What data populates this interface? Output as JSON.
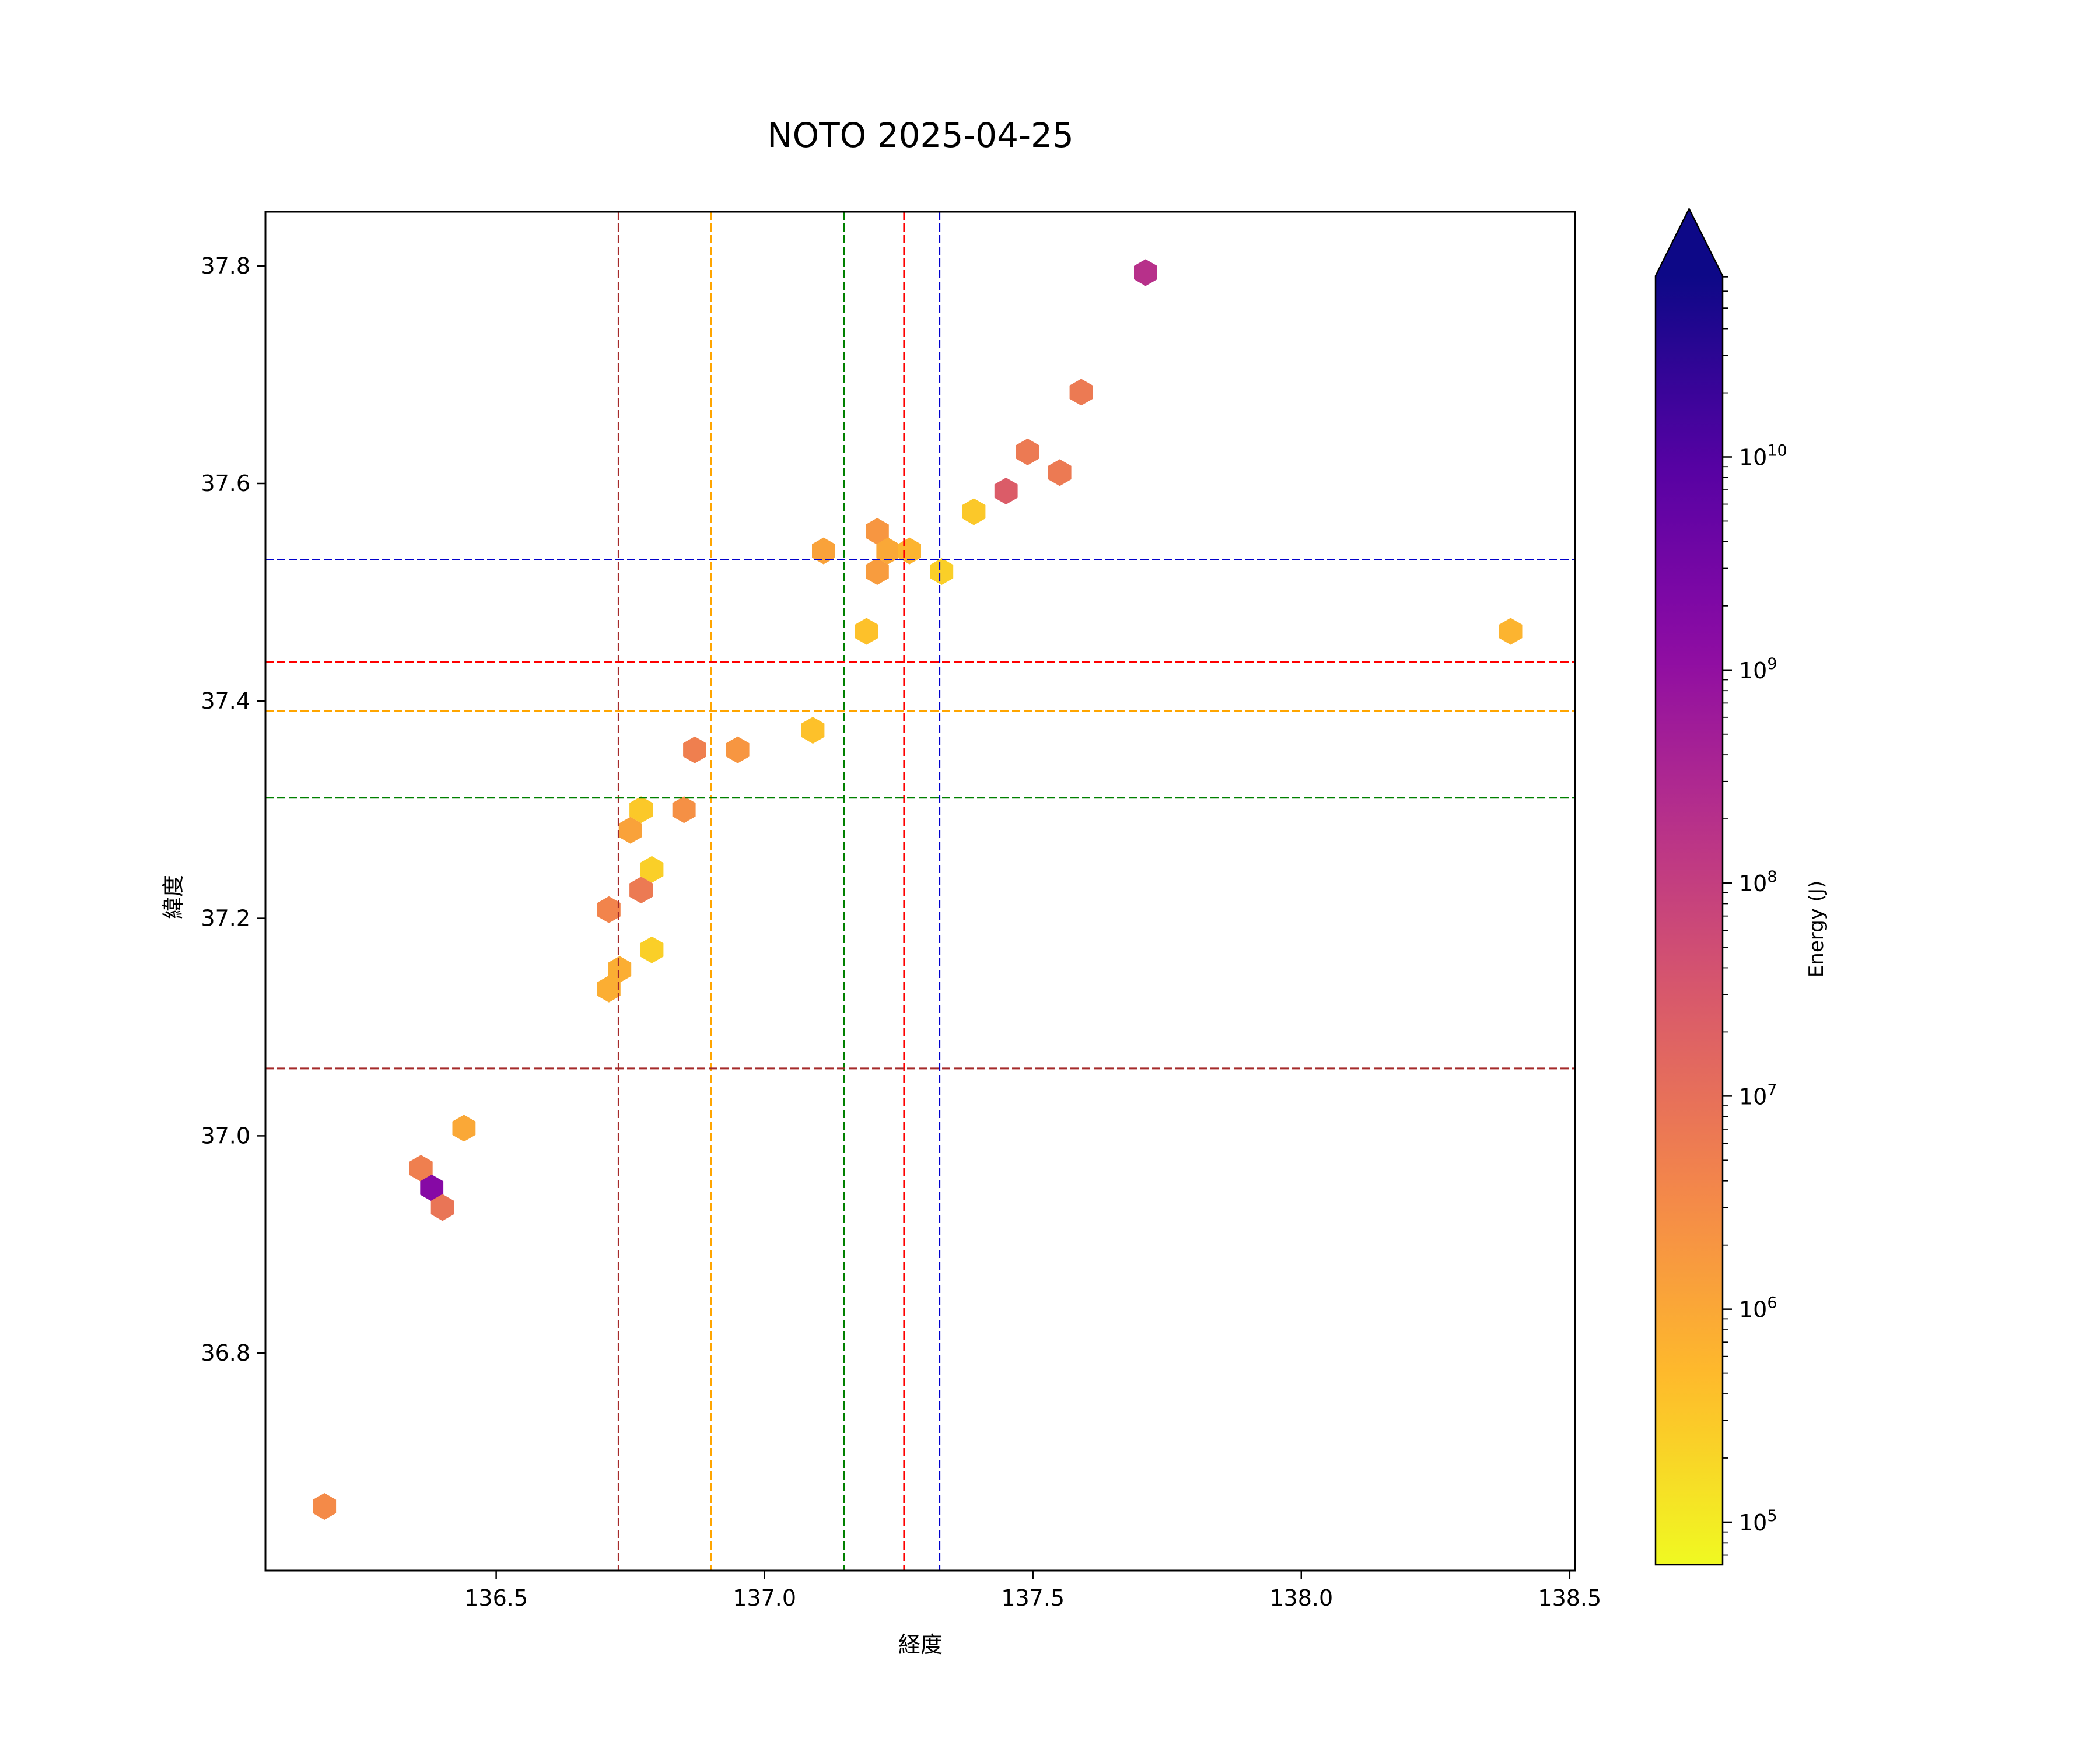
{
  "chart_data": {
    "type": "hexbin",
    "title": "NOTO 2025-04-25",
    "xlabel": "経度",
    "ylabel": "緯度",
    "xlim": [
      136.07,
      138.51
    ],
    "ylim": [
      36.6,
      37.85
    ],
    "xticks": [
      136.5,
      137.0,
      137.5,
      138.0,
      138.5
    ],
    "xtick_labels": [
      "136.5",
      "137.0",
      "137.5",
      "138.0",
      "138.5"
    ],
    "yticks": [
      36.8,
      37.0,
      37.2,
      37.4,
      37.6,
      37.8
    ],
    "ytick_labels": [
      "36.8",
      "37.0",
      "37.2",
      "37.4",
      "37.6",
      "37.8"
    ],
    "grid": false,
    "colorbar": {
      "label": "Energy (J)",
      "scale": "log",
      "colormap": "plasma_r",
      "range_log10": [
        4.8,
        10.85
      ],
      "extend": "max",
      "ticks": [
        {
          "base": "10",
          "exp": "5",
          "log10": 5
        },
        {
          "base": "10",
          "exp": "6",
          "log10": 6
        },
        {
          "base": "10",
          "exp": "7",
          "log10": 7
        },
        {
          "base": "10",
          "exp": "8",
          "log10": 8
        },
        {
          "base": "10",
          "exp": "9",
          "log10": 9
        },
        {
          "base": "10",
          "exp": "10",
          "log10": 10
        }
      ]
    },
    "vlines": [
      {
        "x": 136.728,
        "color": "#a52a2a"
      },
      {
        "x": 136.9,
        "color": "#ffa500"
      },
      {
        "x": 137.148,
        "color": "#008000"
      },
      {
        "x": 137.26,
        "color": "#ff0000"
      },
      {
        "x": 137.326,
        "color": "#0000cc"
      }
    ],
    "hlines": [
      {
        "y": 37.53,
        "color": "#0000cc"
      },
      {
        "y": 37.436,
        "color": "#ff0000"
      },
      {
        "y": 37.391,
        "color": "#ffa500"
      },
      {
        "y": 37.311,
        "color": "#008000"
      },
      {
        "y": 37.062,
        "color": "#a52a2a"
      }
    ],
    "points": [
      {
        "x": 137.71,
        "y": 37.794,
        "energy_log10": 8.3
      },
      {
        "x": 137.59,
        "y": 37.684,
        "energy_log10": 6.8
      },
      {
        "x": 137.49,
        "y": 37.629,
        "energy_log10": 6.8
      },
      {
        "x": 137.55,
        "y": 37.61,
        "energy_log10": 6.8
      },
      {
        "x": 137.45,
        "y": 37.593,
        "energy_log10": 7.4
      },
      {
        "x": 137.39,
        "y": 37.574,
        "energy_log10": 5.5
      },
      {
        "x": 137.21,
        "y": 37.556,
        "energy_log10": 6.3
      },
      {
        "x": 137.23,
        "y": 37.538,
        "energy_log10": 6.0
      },
      {
        "x": 137.27,
        "y": 37.538,
        "energy_log10": 5.8
      },
      {
        "x": 137.11,
        "y": 37.538,
        "energy_log10": 6.1
      },
      {
        "x": 137.21,
        "y": 37.519,
        "energy_log10": 6.2
      },
      {
        "x": 137.33,
        "y": 37.519,
        "energy_log10": 5.4
      },
      {
        "x": 137.19,
        "y": 37.464,
        "energy_log10": 5.6
      },
      {
        "x": 138.39,
        "y": 37.464,
        "energy_log10": 5.8
      },
      {
        "x": 137.09,
        "y": 37.373,
        "energy_log10": 5.6
      },
      {
        "x": 136.87,
        "y": 37.355,
        "energy_log10": 6.7
      },
      {
        "x": 136.95,
        "y": 37.355,
        "energy_log10": 6.3
      },
      {
        "x": 136.77,
        "y": 37.3,
        "energy_log10": 5.5
      },
      {
        "x": 136.85,
        "y": 37.3,
        "energy_log10": 6.4
      },
      {
        "x": 136.75,
        "y": 37.281,
        "energy_log10": 6.1
      },
      {
        "x": 136.79,
        "y": 37.245,
        "energy_log10": 5.4
      },
      {
        "x": 136.77,
        "y": 37.226,
        "energy_log10": 6.8
      },
      {
        "x": 136.71,
        "y": 37.208,
        "energy_log10": 6.6
      },
      {
        "x": 136.79,
        "y": 37.171,
        "energy_log10": 5.4
      },
      {
        "x": 136.73,
        "y": 37.153,
        "energy_log10": 5.9
      },
      {
        "x": 136.71,
        "y": 37.135,
        "energy_log10": 5.9
      },
      {
        "x": 136.44,
        "y": 37.007,
        "energy_log10": 6.0
      },
      {
        "x": 136.36,
        "y": 36.97,
        "energy_log10": 6.7
      },
      {
        "x": 136.38,
        "y": 36.952,
        "energy_log10": 9.2
      },
      {
        "x": 136.4,
        "y": 36.934,
        "energy_log10": 6.9
      },
      {
        "x": 136.18,
        "y": 36.659,
        "energy_log10": 6.5
      }
    ]
  }
}
